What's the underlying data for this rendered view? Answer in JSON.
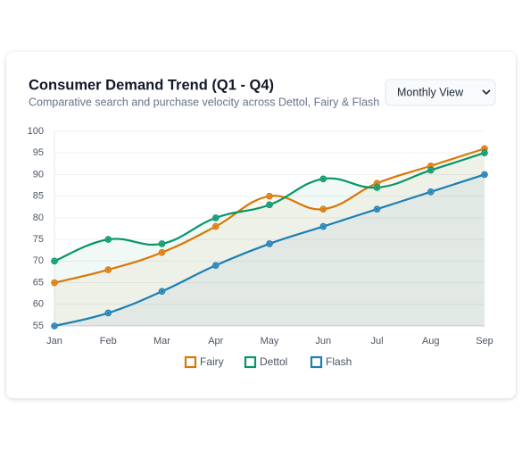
{
  "chart_data": {
    "type": "line",
    "title": "Consumer Demand Trend (Q1 - Q4)",
    "subtitle": "Comparative search and purchase velocity across Dettol, Fairy & Flash",
    "dropdown": "Monthly View",
    "categories": [
      "Jan",
      "Feb",
      "Mar",
      "Apr",
      "May",
      "Jun",
      "Jul",
      "Aug",
      "Sep"
    ],
    "series": [
      {
        "name": "Fairy",
        "color": "#d97706",
        "values": [
          65,
          68,
          72,
          78,
          85,
          82,
          88,
          92,
          96
        ]
      },
      {
        "name": "Dettol",
        "color": "#059669",
        "values": [
          70,
          75,
          74,
          80,
          83,
          89,
          87,
          91,
          95
        ]
      },
      {
        "name": "Flash",
        "color": "#1a7fb5",
        "values": [
          55,
          58,
          63,
          69,
          74,
          78,
          82,
          86,
          90
        ]
      }
    ],
    "ylim": [
      55,
      100
    ],
    "yticks": [
      55,
      60,
      65,
      70,
      75,
      80,
      85,
      90,
      95,
      100
    ],
    "grid": true
  }
}
